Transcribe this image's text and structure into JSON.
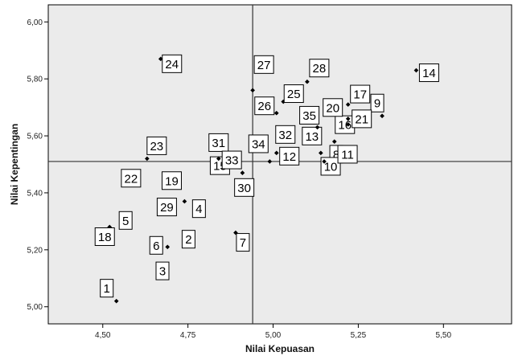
{
  "chart_data": {
    "type": "scatter",
    "title": "",
    "xlabel": "Nilai Kepuasan",
    "ylabel": "Nilai Kepentingan",
    "xlim": [
      4.34,
      5.7
    ],
    "ylim": [
      4.94,
      6.06
    ],
    "x_ticks": [
      "4,50",
      "4,75",
      "5,00",
      "5,25",
      "5,50"
    ],
    "y_ticks": [
      "5,00",
      "5,20",
      "5,40",
      "5,60",
      "5,80",
      "6,00"
    ],
    "reference_lines": {
      "x_mean": 4.94,
      "y_mean": 5.51
    },
    "plot_background": "#ebebeb",
    "marker_color": "#000000",
    "points": [
      {
        "label": "1",
        "x": 4.54,
        "y": 5.02
      },
      {
        "label": "2",
        "x": 4.74,
        "y": 5.24
      },
      {
        "label": "3",
        "x": 4.68,
        "y": 5.14
      },
      {
        "label": "4",
        "x": 4.78,
        "y": 5.35
      },
      {
        "label": "5",
        "x": 4.56,
        "y": 5.32
      },
      {
        "label": "6",
        "x": 4.69,
        "y": 5.21
      },
      {
        "label": "7",
        "x": 4.89,
        "y": 5.26
      },
      {
        "label": "8",
        "x": 5.15,
        "y": 5.51
      },
      {
        "label": "9",
        "x": 5.32,
        "y": 5.67
      },
      {
        "label": "10",
        "x": 5.15,
        "y": 5.51
      },
      {
        "label": "11",
        "x": 5.15,
        "y": 5.51
      },
      {
        "label": "12",
        "x": 5.05,
        "y": 5.54
      },
      {
        "label": "13",
        "x": 5.14,
        "y": 5.54
      },
      {
        "label": "14",
        "x": 5.42,
        "y": 5.83
      },
      {
        "label": "15",
        "x": 4.91,
        "y": 5.47
      },
      {
        "label": "16",
        "x": 5.18,
        "y": 5.58
      },
      {
        "label": "17",
        "x": 5.22,
        "y": 5.71
      },
      {
        "label": "18",
        "x": 4.52,
        "y": 5.28
      },
      {
        "label": "19",
        "x": 4.7,
        "y": 5.44
      },
      {
        "label": "20",
        "x": 5.22,
        "y": 5.66
      },
      {
        "label": "21",
        "x": 5.22,
        "y": 5.64
      },
      {
        "label": "22",
        "x": 4.59,
        "y": 5.44
      },
      {
        "label": "23",
        "x": 4.63,
        "y": 5.52
      },
      {
        "label": "24",
        "x": 4.67,
        "y": 5.87
      },
      {
        "label": "25",
        "x": 5.03,
        "y": 5.72
      },
      {
        "label": "26",
        "x": 5.01,
        "y": 5.68
      },
      {
        "label": "27",
        "x": 4.94,
        "y": 5.76
      },
      {
        "label": "28",
        "x": 5.1,
        "y": 5.79
      },
      {
        "label": "29",
        "x": 4.74,
        "y": 5.37
      },
      {
        "label": "30",
        "x": 4.92,
        "y": 5.43
      },
      {
        "label": "31",
        "x": 4.84,
        "y": 5.52
      },
      {
        "label": "32",
        "x": 5.01,
        "y": 5.54
      },
      {
        "label": "33",
        "x": 4.9,
        "y": 5.49
      },
      {
        "label": "34",
        "x": 4.99,
        "y": 5.51
      },
      {
        "label": "35",
        "x": 5.13,
        "y": 5.63
      }
    ]
  }
}
